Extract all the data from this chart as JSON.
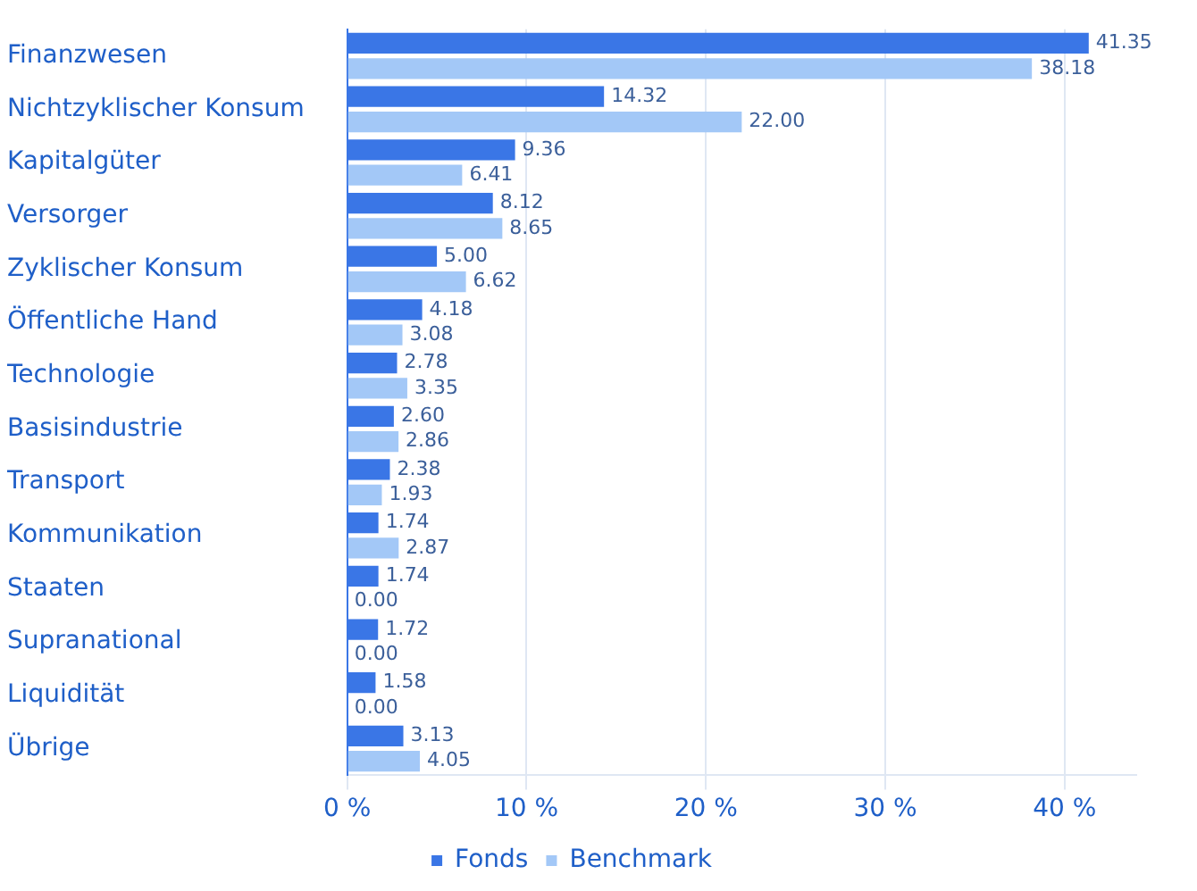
{
  "chart_data": {
    "type": "bar",
    "orientation": "horizontal",
    "categories": [
      "Finanzwesen",
      "Nichtzyklischer Konsum",
      "Kapitalgüter",
      "Versorger",
      "Zyklischer Konsum",
      "Öffentliche Hand",
      "Technologie",
      "Basisindustrie",
      "Transport",
      "Kommunikation",
      "Staaten",
      "Supranational",
      "Liquidität",
      "Übrige"
    ],
    "series": [
      {
        "name": "Fonds",
        "color": "#3a76e6",
        "values": [
          41.35,
          14.32,
          9.36,
          8.12,
          5.0,
          4.18,
          2.78,
          2.6,
          2.38,
          1.74,
          1.74,
          1.72,
          1.58,
          3.13
        ],
        "value_labels": [
          "41.35",
          "14.32",
          "9.36",
          "8.12",
          "5.00",
          "4.18",
          "2.78",
          "2.60",
          "2.38",
          "1.74",
          "1.74",
          "1.72",
          "1.58",
          "3.13"
        ]
      },
      {
        "name": "Benchmark",
        "color": "#a3c8f7",
        "values": [
          38.18,
          22.0,
          6.41,
          8.65,
          6.62,
          3.08,
          3.35,
          2.86,
          1.93,
          2.87,
          0.0,
          0.0,
          0.0,
          4.05
        ],
        "value_labels": [
          "38.18",
          "22.00",
          "6.41",
          "8.65",
          "6.62",
          "3.08",
          "3.35",
          "2.86",
          "1.93",
          "2.87",
          "0.00",
          "0.00",
          "0.00",
          "4.05"
        ]
      }
    ],
    "xlim": [
      0,
      44
    ],
    "xticks": [
      {
        "value": 0,
        "label": "0 %"
      },
      {
        "value": 10,
        "label": "10 %"
      },
      {
        "value": 20,
        "label": "20 %"
      },
      {
        "value": 30,
        "label": "30 %"
      },
      {
        "value": 40,
        "label": "40 %"
      }
    ],
    "grid": "x",
    "legend": "bottom"
  }
}
